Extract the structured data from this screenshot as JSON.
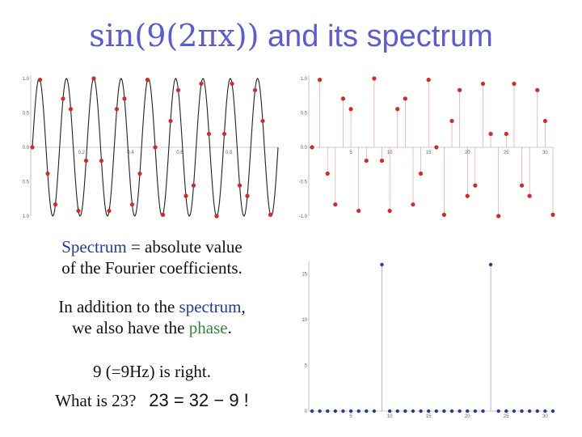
{
  "title": {
    "math": "sin(9(2πx))",
    "words": " and its spectrum"
  },
  "text": {
    "line1_kw": "Spectrum",
    "line1_rest": " = absolute value",
    "line2": "of the Fourier coefficients.",
    "line3_pre": "In addition to the ",
    "line3_kw": "spectrum",
    "line3_post": ",",
    "line4_pre": "we also have the ",
    "line4_kw": "phase",
    "line4_post": ".",
    "line5": "9 (=9Hz) is right.",
    "line6_q": "What is 23?",
    "line6_eq": "23 = 32 − 9 !"
  },
  "colors": {
    "title": "#5b5bd6",
    "keyword_blue": "#1f3aa6",
    "keyword_green": "#2e8b3e",
    "sample_dot": "#d62828",
    "spectrum_dot": "#2b3a9a"
  },
  "chart_data": [
    {
      "type": "line",
      "function": "sin(9(2πx))",
      "frequency": 9,
      "samples": 32,
      "x_range": [
        0,
        1
      ],
      "ylim": [
        -1,
        1
      ],
      "ytick_labels": [
        "1.0",
        "0.5",
        "0.0",
        "-0.5",
        "-1.0"
      ],
      "xtick_labels": [
        "0.2",
        "0.4",
        "0.6",
        "0.8"
      ]
    },
    {
      "type": "scatter",
      "samples": 32,
      "ylim": [
        -1,
        1
      ],
      "ytick_labels": [
        "1.0",
        "0.5",
        "0.0",
        "-0.5",
        "-1.0"
      ],
      "xtick_labels": [
        "5",
        "10",
        "15",
        "20",
        "25",
        "30"
      ]
    },
    {
      "type": "scatter",
      "n": 32,
      "peaks": [
        {
          "k": 9,
          "value": 16
        },
        {
          "k": 23,
          "value": 16
        }
      ],
      "ylim": [
        0,
        16
      ],
      "ytick_labels": [
        "15",
        "10",
        "5",
        "0"
      ],
      "xtick_labels": [
        "5",
        "10",
        "15",
        "20",
        "25",
        "30"
      ]
    }
  ]
}
